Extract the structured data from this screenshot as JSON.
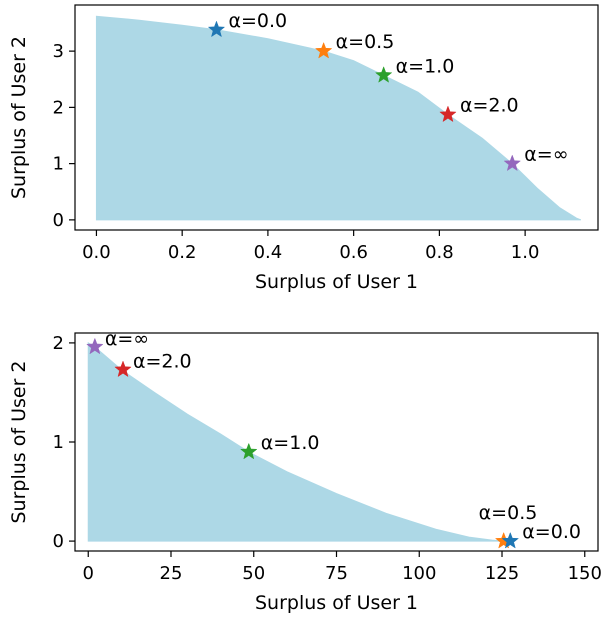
{
  "chart_data": [
    {
      "type": "area",
      "xlabel": "Surplus of User 1",
      "ylabel": "Surplus of User 2",
      "xlim": [
        -0.05,
        1.17
      ],
      "ylim": [
        -0.18,
        3.82
      ],
      "xticks": [
        0.0,
        0.2,
        0.4,
        0.6,
        0.8,
        1.0
      ],
      "xtick_labels": [
        "0.0",
        "0.2",
        "0.4",
        "0.6",
        "0.8",
        "1.0"
      ],
      "yticks": [
        0,
        1,
        2,
        3
      ],
      "ytick_labels": [
        "0",
        "1",
        "2",
        "3"
      ],
      "fill_color": "#add8e6",
      "region": {
        "x": [
          0.0,
          0.1,
          0.2,
          0.28,
          0.4,
          0.53,
          0.6,
          0.67,
          0.75,
          0.82,
          0.9,
          0.97,
          1.03,
          1.08,
          1.12,
          1.13
        ],
        "y": [
          3.62,
          3.55,
          3.46,
          3.38,
          3.22,
          3.0,
          2.83,
          2.57,
          2.27,
          1.87,
          1.45,
          1.0,
          0.55,
          0.22,
          0.03,
          0.0
        ]
      },
      "points": [
        {
          "label": "α=0.0",
          "x": 0.28,
          "y": 3.38,
          "color": "#1f77b4"
        },
        {
          "label": "α=0.5",
          "x": 0.53,
          "y": 3.0,
          "color": "#ff7f0e"
        },
        {
          "label": "α=1.0",
          "x": 0.67,
          "y": 2.57,
          "color": "#2ca02c"
        },
        {
          "label": "α=2.0",
          "x": 0.82,
          "y": 1.87,
          "color": "#d62728"
        },
        {
          "label": "α=∞",
          "x": 0.97,
          "y": 1.0,
          "color": "#9467bd"
        }
      ],
      "grid": false,
      "legend": "none"
    },
    {
      "type": "area",
      "xlabel": "Surplus of User 1",
      "ylabel": "Surplus of User 2",
      "xlim": [
        -4,
        154
      ],
      "ylim": [
        -0.1,
        2.1
      ],
      "xticks": [
        0,
        25,
        50,
        75,
        100,
        125,
        150
      ],
      "xtick_labels": [
        "0",
        "25",
        "50",
        "75",
        "100",
        "125",
        "150"
      ],
      "yticks": [
        0,
        1,
        2
      ],
      "ytick_labels": [
        "0",
        "1",
        "2"
      ],
      "fill_color": "#add8e6",
      "region": {
        "x": [
          0,
          2,
          10,
          20,
          30,
          40,
          48.5,
          60,
          75,
          90,
          105,
          115,
          122,
          125.5,
          128
        ],
        "y": [
          2.0,
          1.96,
          1.73,
          1.5,
          1.28,
          1.08,
          0.9,
          0.7,
          0.48,
          0.28,
          0.12,
          0.04,
          0.01,
          0.0,
          0.0
        ]
      },
      "points": [
        {
          "label": "α=∞",
          "x": 2,
          "y": 1.96,
          "color": "#9467bd"
        },
        {
          "label": "α=2.0",
          "x": 10.5,
          "y": 1.73,
          "color": "#d62728"
        },
        {
          "label": "α=1.0",
          "x": 48.5,
          "y": 0.9,
          "color": "#2ca02c"
        },
        {
          "label": "α=0.5",
          "x": 125.5,
          "y": 0.0,
          "color": "#ff7f0e"
        },
        {
          "label": "α=0.0",
          "x": 127.5,
          "y": 0.0,
          "color": "#1f77b4"
        }
      ],
      "grid": false,
      "legend": "none"
    }
  ]
}
